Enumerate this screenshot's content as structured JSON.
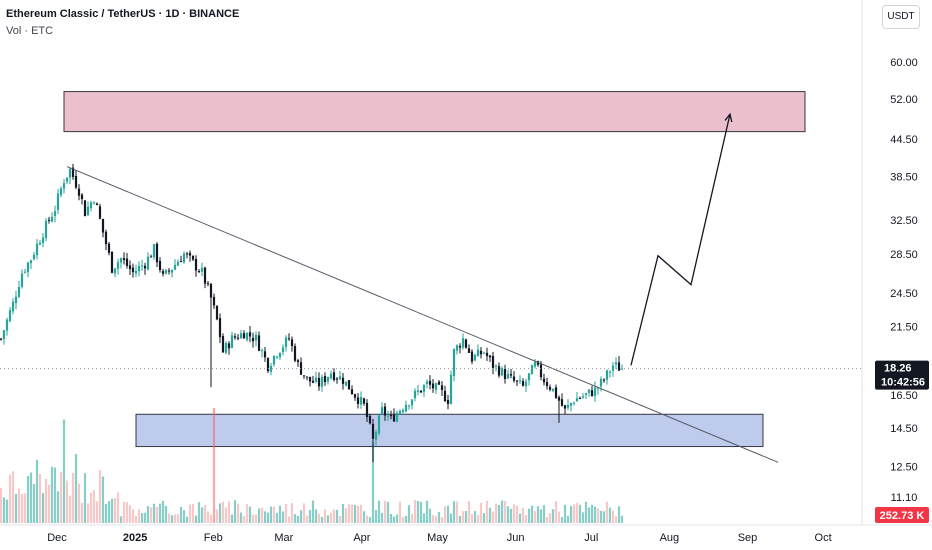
{
  "header": {
    "title": "Ethereum Classic / TetherUS · 1D · BINANCE",
    "volume_label": "Vol · ETC"
  },
  "currency_button": "USDT",
  "colors": {
    "up": "#26a69a",
    "down": "#131722",
    "volume_bar": "#ef9a9a",
    "volume_bar_highlight": "#f06262",
    "volume_bar_green": "#26a69a",
    "resistance_zone": "#e8b4c4",
    "support_zone": "#b3c3ea",
    "price_badge": "#131722",
    "volume_badge": "#f23645"
  },
  "chart_data": {
    "type": "candlestick",
    "y_scale": "log",
    "y_ticks": [
      "60.00",
      "52.00",
      "44.50",
      "38.50",
      "32.50",
      "28.50",
      "24.50",
      "21.50",
      "16.50",
      "14.50",
      "12.50",
      "11.10"
    ],
    "x_ticks": [
      {
        "label": "Dec",
        "bold": false
      },
      {
        "label": "2025",
        "bold": true
      },
      {
        "label": "Feb",
        "bold": false
      },
      {
        "label": "Mar",
        "bold": false
      },
      {
        "label": "Apr",
        "bold": false
      },
      {
        "label": "May",
        "bold": false
      },
      {
        "label": "Jun",
        "bold": false
      },
      {
        "label": "Jul",
        "bold": false
      },
      {
        "label": "Aug",
        "bold": false
      },
      {
        "label": "Sep",
        "bold": false
      },
      {
        "label": "Oct",
        "bold": false
      }
    ],
    "last_price": "18.26",
    "countdown": "10:42:56",
    "last_volume": "252.73 K",
    "anchors": [
      {
        "t": 0,
        "p": 20.5
      },
      {
        "t": 4,
        "p": 23.5
      },
      {
        "t": 7,
        "p": 26.5
      },
      {
        "t": 10,
        "p": 28.0
      },
      {
        "t": 14,
        "p": 31.0
      },
      {
        "t": 18,
        "p": 34.0
      },
      {
        "t": 21,
        "p": 38.0
      },
      {
        "t": 23,
        "p": 39.5
      },
      {
        "t": 26,
        "p": 36.5
      },
      {
        "t": 28,
        "p": 33.5
      },
      {
        "t": 31,
        "p": 35.5
      },
      {
        "t": 34,
        "p": 31.0
      },
      {
        "t": 37,
        "p": 27.0
      },
      {
        "t": 40,
        "p": 28.0
      },
      {
        "t": 44,
        "p": 26.5
      },
      {
        "t": 48,
        "p": 27.5
      },
      {
        "t": 51,
        "p": 29.0
      },
      {
        "t": 54,
        "p": 26.0
      },
      {
        "t": 57,
        "p": 27.0
      },
      {
        "t": 61,
        "p": 28.5
      },
      {
        "t": 64,
        "p": 27.5
      },
      {
        "t": 67,
        "p": 26.5
      },
      {
        "t": 70,
        "p": 24.0
      },
      {
        "t": 72,
        "p": 22.0
      },
      {
        "t": 74,
        "p": 19.5
      },
      {
        "t": 77,
        "p": 20.5
      },
      {
        "t": 81,
        "p": 21.0
      },
      {
        "t": 85,
        "p": 20.5
      },
      {
        "t": 89,
        "p": 18.5
      },
      {
        "t": 92,
        "p": 19.5
      },
      {
        "t": 96,
        "p": 20.5
      },
      {
        "t": 99,
        "p": 18.5
      },
      {
        "t": 102,
        "p": 17.5
      },
      {
        "t": 106,
        "p": 17.2
      },
      {
        "t": 110,
        "p": 18.0
      },
      {
        "t": 114,
        "p": 17.5
      },
      {
        "t": 118,
        "p": 16.5
      },
      {
        "t": 121,
        "p": 15.8
      },
      {
        "t": 124,
        "p": 13.8
      },
      {
        "t": 127,
        "p": 15.5
      },
      {
        "t": 130,
        "p": 15.0
      },
      {
        "t": 134,
        "p": 15.8
      },
      {
        "t": 138,
        "p": 16.5
      },
      {
        "t": 142,
        "p": 17.2
      },
      {
        "t": 146,
        "p": 16.8
      },
      {
        "t": 149,
        "p": 16.2
      },
      {
        "t": 151,
        "p": 19.5
      },
      {
        "t": 154,
        "p": 20.5
      },
      {
        "t": 157,
        "p": 19.0
      },
      {
        "t": 161,
        "p": 19.5
      },
      {
        "t": 164,
        "p": 18.5
      },
      {
        "t": 167,
        "p": 18.0
      },
      {
        "t": 170,
        "p": 17.5
      },
      {
        "t": 174,
        "p": 17.0
      },
      {
        "t": 178,
        "p": 18.5
      },
      {
        "t": 181,
        "p": 17.5
      },
      {
        "t": 184,
        "p": 16.8
      },
      {
        "t": 188,
        "p": 15.5
      },
      {
        "t": 191,
        "p": 16.2
      },
      {
        "t": 195,
        "p": 16.5
      },
      {
        "t": 198,
        "p": 16.8
      },
      {
        "t": 201,
        "p": 17.5
      },
      {
        "t": 204,
        "p": 18.5
      },
      {
        "t": 207,
        "p": 18.26
      }
    ],
    "spikes": [
      {
        "t": 70,
        "low": 17.0
      },
      {
        "t": 124,
        "low": 12.7
      },
      {
        "t": 186,
        "low": 14.8
      }
    ],
    "volume": {
      "highlight": [
        {
          "t": 71,
          "v": 1.0
        },
        {
          "t": 124,
          "v": 0.7
        }
      ],
      "peaks": [
        {
          "t": 21,
          "v": 0.9
        },
        {
          "t": 12,
          "v": 0.55
        },
        {
          "t": 25,
          "v": 0.6
        },
        {
          "t": 4,
          "v": 0.45
        }
      ]
    },
    "resistance_zone": {
      "from_t": 20,
      "to_t": 268,
      "top": 53.5,
      "bottom": 45.8
    },
    "support_zone": {
      "from_t": 44,
      "to_t": 254,
      "top": 15.3,
      "bottom": 13.5
    },
    "trendline": [
      {
        "t": 22,
        "p": 40.0
      },
      {
        "t": 259,
        "p": 12.7
      }
    ],
    "projection": [
      {
        "t": 210,
        "p": 18.5
      },
      {
        "t": 219,
        "p": 28.3
      },
      {
        "t": 230,
        "p": 25.3
      },
      {
        "t": 243,
        "p": 49.0
      }
    ]
  }
}
